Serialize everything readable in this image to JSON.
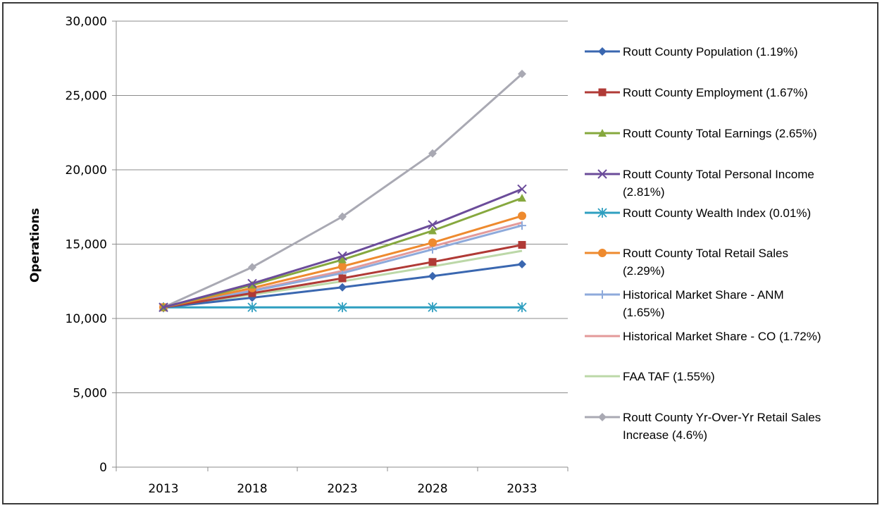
{
  "chart_data": {
    "type": "line",
    "title": "",
    "xlabel": "",
    "ylabel": "Operations",
    "ylim": [
      0,
      30000
    ],
    "yticks": [
      0,
      5000,
      10000,
      15000,
      20000,
      25000,
      30000
    ],
    "ytick_labels": [
      "0",
      "5,000",
      "10,000",
      "15,000",
      "20,000",
      "25,000",
      "30,000"
    ],
    "categories": [
      "2013",
      "2018",
      "2023",
      "2028",
      "2033"
    ],
    "grid": "horizontal",
    "legend_position": "right",
    "series": [
      {
        "name": "Routt County Population  (1.19%)",
        "color": "#3a67b0",
        "marker": "diamond",
        "values": [
          10750,
          11400,
          12100,
          12850,
          13650
        ]
      },
      {
        "name": "Routt County Employment  (1.67%)",
        "color": "#b03a36",
        "marker": "square",
        "values": [
          10750,
          11700,
          12700,
          13800,
          14950
        ]
      },
      {
        "name": "Routt County Total Earnings  (2.65%)",
        "color": "#86a83e",
        "marker": "triangle",
        "values": [
          10750,
          12250,
          13950,
          15900,
          18100
        ]
      },
      {
        "name": "Routt County Total Personal Income (2.81%)",
        "color": "#6b4c9a",
        "marker": "x",
        "values": [
          10750,
          12350,
          14200,
          16300,
          18700
        ]
      },
      {
        "name": "Routt County Wealth Index  (0.01%)",
        "color": "#2f9fc0",
        "marker": "star",
        "values": [
          10750,
          10750,
          10750,
          10750,
          10750
        ]
      },
      {
        "name": "Routt County Total Retail Sales (2.29%)",
        "color": "#ee8a2e",
        "marker": "circle",
        "values": [
          10750,
          12050,
          13500,
          15100,
          16900
        ]
      },
      {
        "name": "Historical Market Share - ANM (1.65%)",
        "color": "#8eaadb",
        "marker": "plus",
        "values": [
          10750,
          11850,
          13050,
          14650,
          16250
        ]
      },
      {
        "name": "Historical Market Share - CO (1.72%)",
        "color": "#e39a9a",
        "marker": "none",
        "values": [
          10750,
          11900,
          13200,
          14850,
          16450
        ]
      },
      {
        "name": "FAA TAF (1.55%)",
        "color": "#bcd8a8",
        "marker": "none",
        "values": [
          10750,
          11600,
          12500,
          13500,
          14550
        ]
      },
      {
        "name": "Routt County Yr-Over-Yr Retail Sales Increase (4.6%)",
        "color": "#a9a9b3",
        "marker": "diamond",
        "values": [
          10750,
          13450,
          16850,
          21100,
          26450
        ]
      }
    ],
    "legend_lines": [
      [
        "Routt County Population  (1.19%)"
      ],
      [
        "Routt County Employment  (1.67%)"
      ],
      [
        "Routt County Total Earnings  (2.65%)"
      ],
      [
        "Routt County Total Personal Income",
        "(2.81%)"
      ],
      [
        "Routt County Wealth Index  (0.01%)"
      ],
      [
        "Routt County Total Retail Sales",
        "(2.29%)"
      ],
      [
        "Historical Market Share - ANM",
        "(1.65%)"
      ],
      [
        "Historical Market Share - CO (1.72%)"
      ],
      [
        "FAA TAF (1.55%)"
      ],
      [
        " Routt County Yr-Over-Yr Retail Sales",
        "Increase (4.6%)"
      ]
    ]
  }
}
